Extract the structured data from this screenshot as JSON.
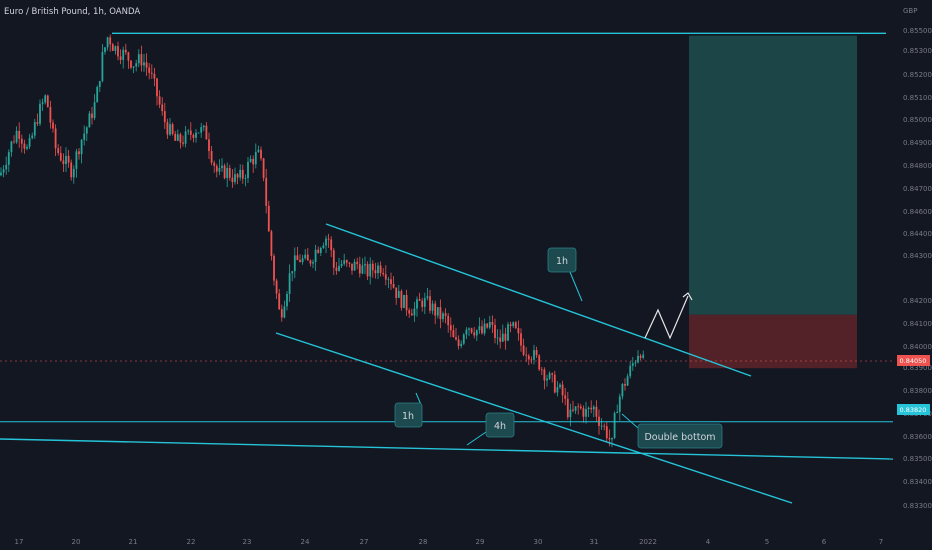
{
  "header": {
    "symbol": "Euro / British Pound, 1h, OANDA"
  },
  "axis": {
    "currency": "GBP",
    "price_ticks": [
      "0.85500",
      "0.85300",
      "0.85200",
      "0.85100",
      "0.85000",
      "0.84900",
      "0.84800",
      "0.84700",
      "0.84600",
      "0.84400",
      "0.84300",
      "0.84200",
      "0.84100",
      "0.84000",
      "0.83900",
      "0.83800",
      "0.83700",
      "0.83600",
      "0.83500",
      "0.83400",
      "0.83300"
    ],
    "time_ticks": [
      "17",
      "20",
      "21",
      "22",
      "23",
      "24",
      "27",
      "28",
      "29",
      "30",
      "31",
      "2022",
      "4",
      "5",
      "6",
      "7"
    ],
    "current_price_label": "0.84050",
    "level_label": "0.83820"
  },
  "annotations": {
    "label_1h_top": "1h",
    "label_1h_bottom": "1h",
    "label_4h": "4h",
    "double_bottom": "Double bottom"
  },
  "colors": {
    "bg": "#131722",
    "up": "#26a69a",
    "down": "#ef5350",
    "line": "#25c4d8",
    "target_zone": "#1e4d4d",
    "stop_zone": "#5a2329",
    "callout_bg": "#1d4a4f"
  },
  "chart_data": {
    "type": "candlestick",
    "instrument": "EUR/GBP",
    "interval": "1h",
    "y_range": [
      0.8333,
      0.856
    ],
    "trend_lines": [
      {
        "label": "1h",
        "role": "upper channel"
      },
      {
        "label": "1h",
        "role": "lower channel"
      },
      {
        "label": "4h",
        "role": "long-term support"
      }
    ],
    "horizontal_levels": [
      0.8549,
      0.8382
    ],
    "position": {
      "entry": 0.8405,
      "stop": 0.8428,
      "target": 0.8548
    },
    "price_path": [
      [
        0,
        0.8488
      ],
      [
        10,
        0.85
      ],
      [
        18,
        0.8508
      ],
      [
        28,
        0.8498
      ],
      [
        38,
        0.8514
      ],
      [
        46,
        0.8522
      ],
      [
        55,
        0.85
      ],
      [
        64,
        0.8494
      ],
      [
        72,
        0.849
      ],
      [
        80,
        0.8502
      ],
      [
        88,
        0.851
      ],
      [
        96,
        0.852
      ],
      [
        102,
        0.8538
      ],
      [
        108,
        0.8548
      ],
      [
        114,
        0.8543
      ],
      [
        124,
        0.854
      ],
      [
        134,
        0.8536
      ],
      [
        142,
        0.8538
      ],
      [
        150,
        0.8532
      ],
      [
        156,
        0.8524
      ],
      [
        162,
        0.8514
      ],
      [
        168,
        0.8508
      ],
      [
        176,
        0.8502
      ],
      [
        186,
        0.8504
      ],
      [
        196,
        0.8508
      ],
      [
        206,
        0.8506
      ],
      [
        212,
        0.8496
      ],
      [
        218,
        0.8488
      ],
      [
        226,
        0.849
      ],
      [
        236,
        0.8486
      ],
      [
        244,
        0.8488
      ],
      [
        250,
        0.8494
      ],
      [
        258,
        0.8497
      ],
      [
        264,
        0.8488
      ],
      [
        268,
        0.8466
      ],
      [
        274,
        0.8444
      ],
      [
        280,
        0.8427
      ],
      [
        286,
        0.8438
      ],
      [
        292,
        0.8449
      ],
      [
        300,
        0.8452
      ],
      [
        308,
        0.845
      ],
      [
        316,
        0.8456
      ],
      [
        322,
        0.846
      ],
      [
        328,
        0.8462
      ],
      [
        334,
        0.8448
      ],
      [
        342,
        0.845
      ],
      [
        350,
        0.8448
      ],
      [
        358,
        0.845
      ],
      [
        366,
        0.8446
      ],
      [
        374,
        0.8448
      ],
      [
        382,
        0.8449
      ],
      [
        390,
        0.8444
      ],
      [
        398,
        0.8436
      ],
      [
        406,
        0.8432
      ],
      [
        414,
        0.843
      ],
      [
        422,
        0.8434
      ],
      [
        430,
        0.8432
      ],
      [
        438,
        0.8428
      ],
      [
        446,
        0.8426
      ],
      [
        452,
        0.8418
      ],
      [
        458,
        0.8414
      ],
      [
        466,
        0.8424
      ],
      [
        474,
        0.8422
      ],
      [
        482,
        0.842
      ],
      [
        490,
        0.8424
      ],
      [
        498,
        0.8416
      ],
      [
        506,
        0.842
      ],
      [
        514,
        0.8422
      ],
      [
        522,
        0.8414
      ],
      [
        530,
        0.8412
      ],
      [
        538,
        0.8408
      ],
      [
        546,
        0.8402
      ],
      [
        554,
        0.8398
      ],
      [
        562,
        0.8394
      ],
      [
        570,
        0.8384
      ],
      [
        578,
        0.8388
      ],
      [
        586,
        0.8386
      ],
      [
        594,
        0.8388
      ],
      [
        600,
        0.8382
      ],
      [
        606,
        0.8378
      ],
      [
        612,
        0.8372
      ],
      [
        616,
        0.8388
      ],
      [
        622,
        0.8396
      ],
      [
        628,
        0.8402
      ],
      [
        634,
        0.8408
      ],
      [
        640,
        0.8414
      ],
      [
        644,
        0.8406
      ]
    ]
  }
}
